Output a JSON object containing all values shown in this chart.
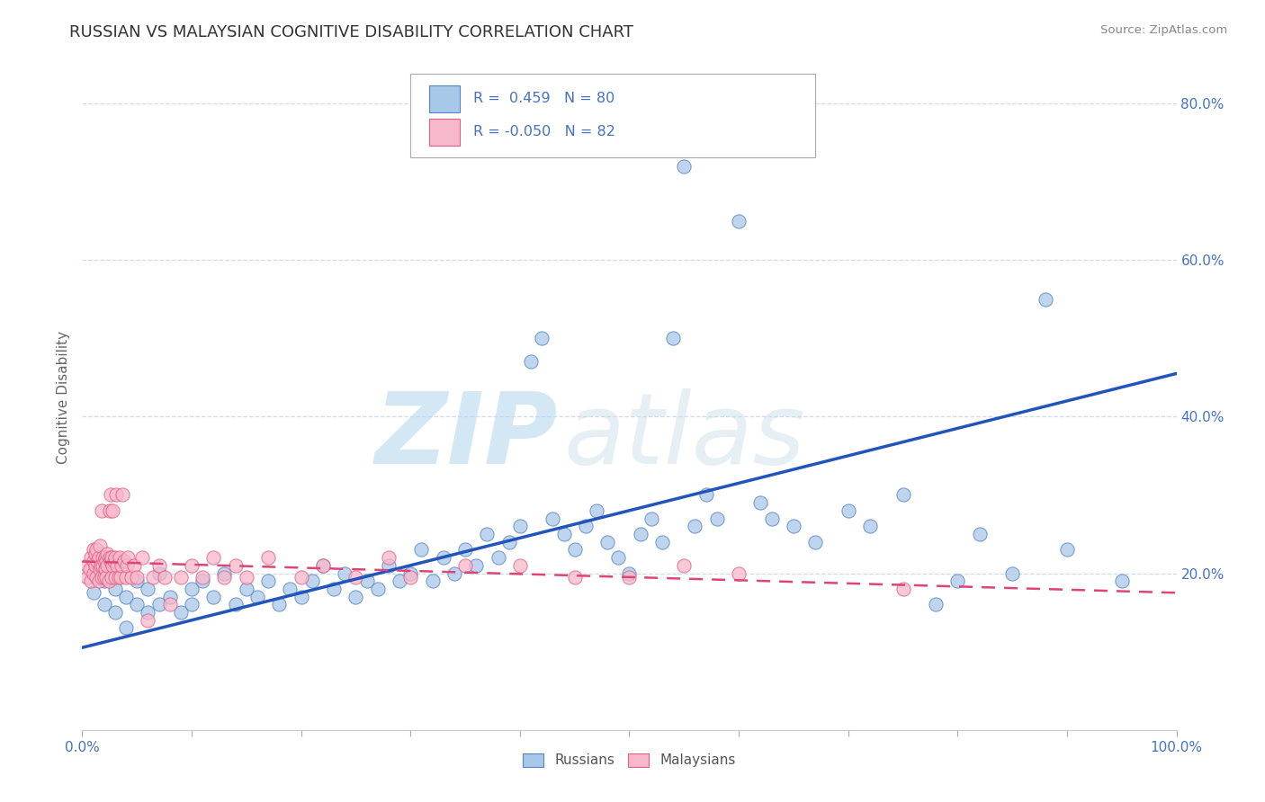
{
  "title": "RUSSIAN VS MALAYSIAN COGNITIVE DISABILITY CORRELATION CHART",
  "source": "Source: ZipAtlas.com",
  "ylabel": "Cognitive Disability",
  "xmin": 0.0,
  "xmax": 1.0,
  "ymin": 0.0,
  "ymax": 0.85,
  "ytick_vals": [
    0.2,
    0.4,
    0.6,
    0.8
  ],
  "ytick_labels": [
    "20.0%",
    "40.0%",
    "60.0%",
    "80.0%"
  ],
  "legend_r_russian": "R =  0.459",
  "legend_n_russian": "N = 80",
  "legend_r_malaysian": "R = -0.050",
  "legend_n_malaysian": "N = 82",
  "russian_fill": "#a8c8e8",
  "russian_edge": "#5585c5",
  "malaysian_fill": "#f8b8cc",
  "malaysian_edge": "#e06080",
  "russian_line_color": "#2255bb",
  "malaysian_line_color": "#dd4477",
  "russian_scatter": [
    [
      0.01,
      0.175
    ],
    [
      0.02,
      0.16
    ],
    [
      0.02,
      0.19
    ],
    [
      0.03,
      0.18
    ],
    [
      0.03,
      0.15
    ],
    [
      0.04,
      0.17
    ],
    [
      0.04,
      0.13
    ],
    [
      0.05,
      0.16
    ],
    [
      0.05,
      0.19
    ],
    [
      0.06,
      0.15
    ],
    [
      0.06,
      0.18
    ],
    [
      0.07,
      0.16
    ],
    [
      0.07,
      0.2
    ],
    [
      0.08,
      0.17
    ],
    [
      0.09,
      0.15
    ],
    [
      0.1,
      0.18
    ],
    [
      0.1,
      0.16
    ],
    [
      0.11,
      0.19
    ],
    [
      0.12,
      0.17
    ],
    [
      0.13,
      0.2
    ],
    [
      0.14,
      0.16
    ],
    [
      0.15,
      0.18
    ],
    [
      0.16,
      0.17
    ],
    [
      0.17,
      0.19
    ],
    [
      0.18,
      0.16
    ],
    [
      0.19,
      0.18
    ],
    [
      0.2,
      0.17
    ],
    [
      0.21,
      0.19
    ],
    [
      0.22,
      0.21
    ],
    [
      0.23,
      0.18
    ],
    [
      0.24,
      0.2
    ],
    [
      0.25,
      0.17
    ],
    [
      0.26,
      0.19
    ],
    [
      0.27,
      0.18
    ],
    [
      0.28,
      0.21
    ],
    [
      0.29,
      0.19
    ],
    [
      0.3,
      0.2
    ],
    [
      0.31,
      0.23
    ],
    [
      0.32,
      0.19
    ],
    [
      0.33,
      0.22
    ],
    [
      0.34,
      0.2
    ],
    [
      0.35,
      0.23
    ],
    [
      0.36,
      0.21
    ],
    [
      0.37,
      0.25
    ],
    [
      0.38,
      0.22
    ],
    [
      0.39,
      0.24
    ],
    [
      0.4,
      0.26
    ],
    [
      0.41,
      0.47
    ],
    [
      0.42,
      0.5
    ],
    [
      0.43,
      0.27
    ],
    [
      0.44,
      0.25
    ],
    [
      0.45,
      0.23
    ],
    [
      0.46,
      0.26
    ],
    [
      0.47,
      0.28
    ],
    [
      0.48,
      0.24
    ],
    [
      0.49,
      0.22
    ],
    [
      0.5,
      0.2
    ],
    [
      0.51,
      0.25
    ],
    [
      0.52,
      0.27
    ],
    [
      0.53,
      0.24
    ],
    [
      0.54,
      0.5
    ],
    [
      0.55,
      0.72
    ],
    [
      0.56,
      0.26
    ],
    [
      0.57,
      0.3
    ],
    [
      0.58,
      0.27
    ],
    [
      0.6,
      0.65
    ],
    [
      0.62,
      0.29
    ],
    [
      0.63,
      0.27
    ],
    [
      0.65,
      0.26
    ],
    [
      0.67,
      0.24
    ],
    [
      0.7,
      0.28
    ],
    [
      0.72,
      0.26
    ],
    [
      0.75,
      0.3
    ],
    [
      0.78,
      0.16
    ],
    [
      0.8,
      0.19
    ],
    [
      0.82,
      0.25
    ],
    [
      0.85,
      0.2
    ],
    [
      0.88,
      0.55
    ],
    [
      0.9,
      0.23
    ],
    [
      0.95,
      0.19
    ]
  ],
  "malaysian_scatter": [
    [
      0.005,
      0.195
    ],
    [
      0.005,
      0.21
    ],
    [
      0.007,
      0.205
    ],
    [
      0.008,
      0.22
    ],
    [
      0.008,
      0.19
    ],
    [
      0.01,
      0.215
    ],
    [
      0.01,
      0.23
    ],
    [
      0.01,
      0.2
    ],
    [
      0.012,
      0.225
    ],
    [
      0.012,
      0.21
    ],
    [
      0.013,
      0.195
    ],
    [
      0.013,
      0.23
    ],
    [
      0.014,
      0.215
    ],
    [
      0.015,
      0.22
    ],
    [
      0.015,
      0.19
    ],
    [
      0.016,
      0.205
    ],
    [
      0.016,
      0.235
    ],
    [
      0.017,
      0.21
    ],
    [
      0.018,
      0.28
    ],
    [
      0.018,
      0.195
    ],
    [
      0.019,
      0.22
    ],
    [
      0.019,
      0.21
    ],
    [
      0.02,
      0.195
    ],
    [
      0.02,
      0.215
    ],
    [
      0.021,
      0.22
    ],
    [
      0.021,
      0.205
    ],
    [
      0.022,
      0.215
    ],
    [
      0.022,
      0.195
    ],
    [
      0.023,
      0.21
    ],
    [
      0.023,
      0.225
    ],
    [
      0.024,
      0.19
    ],
    [
      0.025,
      0.28
    ],
    [
      0.025,
      0.22
    ],
    [
      0.026,
      0.3
    ],
    [
      0.026,
      0.215
    ],
    [
      0.027,
      0.195
    ],
    [
      0.027,
      0.22
    ],
    [
      0.028,
      0.21
    ],
    [
      0.028,
      0.28
    ],
    [
      0.029,
      0.215
    ],
    [
      0.03,
      0.22
    ],
    [
      0.03,
      0.195
    ],
    [
      0.031,
      0.3
    ],
    [
      0.032,
      0.21
    ],
    [
      0.033,
      0.195
    ],
    [
      0.034,
      0.22
    ],
    [
      0.035,
      0.195
    ],
    [
      0.036,
      0.21
    ],
    [
      0.037,
      0.3
    ],
    [
      0.038,
      0.215
    ],
    [
      0.04,
      0.195
    ],
    [
      0.041,
      0.21
    ],
    [
      0.042,
      0.22
    ],
    [
      0.045,
      0.195
    ],
    [
      0.047,
      0.21
    ],
    [
      0.05,
      0.195
    ],
    [
      0.055,
      0.22
    ],
    [
      0.06,
      0.14
    ],
    [
      0.065,
      0.195
    ],
    [
      0.07,
      0.21
    ],
    [
      0.075,
      0.195
    ],
    [
      0.08,
      0.16
    ],
    [
      0.09,
      0.195
    ],
    [
      0.1,
      0.21
    ],
    [
      0.11,
      0.195
    ],
    [
      0.12,
      0.22
    ],
    [
      0.13,
      0.195
    ],
    [
      0.14,
      0.21
    ],
    [
      0.15,
      0.195
    ],
    [
      0.17,
      0.22
    ],
    [
      0.2,
      0.195
    ],
    [
      0.22,
      0.21
    ],
    [
      0.25,
      0.195
    ],
    [
      0.28,
      0.22
    ],
    [
      0.3,
      0.195
    ],
    [
      0.35,
      0.21
    ],
    [
      0.4,
      0.21
    ],
    [
      0.45,
      0.195
    ],
    [
      0.5,
      0.195
    ],
    [
      0.55,
      0.21
    ],
    [
      0.6,
      0.2
    ],
    [
      0.75,
      0.18
    ]
  ],
  "russian_line_x": [
    0.0,
    1.0
  ],
  "russian_line_y": [
    0.105,
    0.455
  ],
  "malaysian_line_x": [
    0.0,
    1.0
  ],
  "malaysian_line_y": [
    0.215,
    0.175
  ],
  "bg_color": "#ffffff",
  "grid_color": "#c8d8e8",
  "tick_color": "#4472c4",
  "title_color": "#333333"
}
